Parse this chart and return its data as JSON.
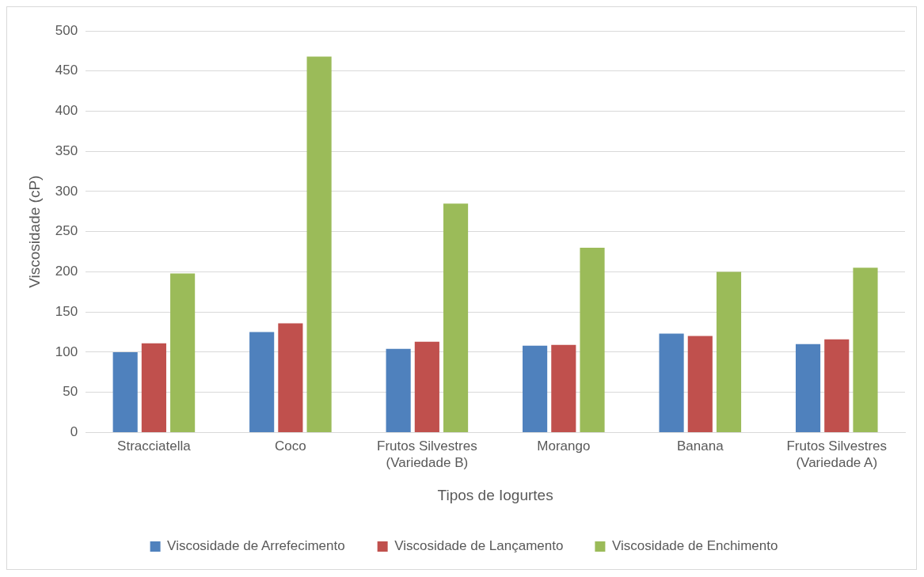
{
  "chart_data": {
    "type": "bar",
    "xlabel": "Tipos de Iogurtes",
    "ylabel": "Viscosidade (cP)",
    "categories": [
      "Stracciatella",
      "Coco",
      "Frutos Silvestres (Variedade B)",
      "Morango",
      "Banana",
      "Frutos Silvestres (Variedade A)"
    ],
    "series": [
      {
        "name": "Viscosidade de Arrefecimento",
        "color": "#4f81bd",
        "values": [
          100,
          125,
          104,
          108,
          123,
          110
        ]
      },
      {
        "name": "Viscosidade de Lançamento",
        "color": "#c0504d",
        "values": [
          111,
          136,
          113,
          109,
          120,
          116
        ]
      },
      {
        "name": "Viscosidade de Enchimento",
        "color": "#9bbb59",
        "values": [
          198,
          468,
          285,
          230,
          200,
          205
        ]
      }
    ],
    "ylim": [
      0,
      500
    ],
    "yticks": [
      0,
      50,
      100,
      150,
      200,
      250,
      300,
      350,
      400,
      450,
      500
    ],
    "grid": "y",
    "legend": "bottom"
  }
}
